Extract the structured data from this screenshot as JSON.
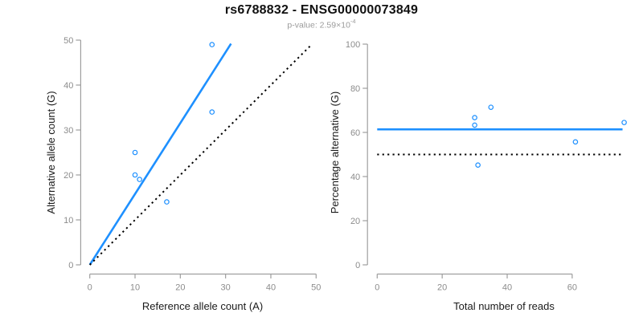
{
  "header": {
    "title": "rs6788832 - ENSG00000073849",
    "subtitle": {
      "label": "p-value: 2.59×10",
      "exponent": "-4"
    }
  },
  "colors": {
    "point_and_fit_blue": "#1E90FF",
    "reference_line_black": "#000000",
    "axis_gray": "#9E9E9E",
    "tick_label_gray": "#8C8C8C",
    "axis_title_color": "#1A1A1A",
    "background": "#FFFFFF"
  },
  "chart_data": [
    {
      "type": "scatter",
      "panel": "allele-counts",
      "xlabel": "Reference allele count (A)",
      "ylabel": "Alternative allele count (G)",
      "xlim": [
        0,
        50
      ],
      "ylim": [
        0,
        50
      ],
      "xticks": [
        0,
        10,
        20,
        30,
        40,
        50
      ],
      "yticks": [
        0,
        10,
        20,
        30,
        40,
        50
      ],
      "grid": false,
      "legend": null,
      "points": [
        [
          27,
          49
        ],
        [
          27,
          34
        ],
        [
          10,
          25
        ],
        [
          10,
          20
        ],
        [
          11,
          19
        ],
        [
          17,
          14
        ]
      ],
      "lines": [
        {
          "name": "fitted-allelic-ratio-line",
          "style": "solid",
          "color": "blue",
          "x1": 0,
          "y1": 0,
          "x2": 31.2,
          "y2": 49.2
        },
        {
          "name": "identity-line",
          "style": "dotted",
          "color": "black",
          "x1": 0,
          "y1": 0,
          "x2": 49,
          "y2": 49
        }
      ]
    },
    {
      "type": "scatter",
      "panel": "percentage-vs-coverage",
      "xlabel": "Total number of reads",
      "ylabel": "Percentage alternative (G)",
      "xlim": [
        0,
        76
      ],
      "ylim": [
        0,
        100
      ],
      "xticks": [
        0,
        20,
        40,
        60
      ],
      "yticks": [
        0,
        20,
        40,
        60,
        80,
        100
      ],
      "grid": false,
      "legend": null,
      "points": [
        [
          30,
          66.7
        ],
        [
          30,
          63.3
        ],
        [
          35,
          71.4
        ],
        [
          31,
          45.2
        ],
        [
          61,
          55.7
        ],
        [
          76,
          64.5
        ]
      ],
      "lines": [
        {
          "name": "mean-percentage-line",
          "style": "solid",
          "color": "blue",
          "x1": 0,
          "y1": 61.4,
          "x2": 75.5,
          "y2": 61.4
        },
        {
          "name": "fifty-percent-line",
          "style": "dotted",
          "color": "black",
          "x1": 0,
          "y1": 50,
          "x2": 75.5,
          "y2": 50
        }
      ]
    }
  ]
}
